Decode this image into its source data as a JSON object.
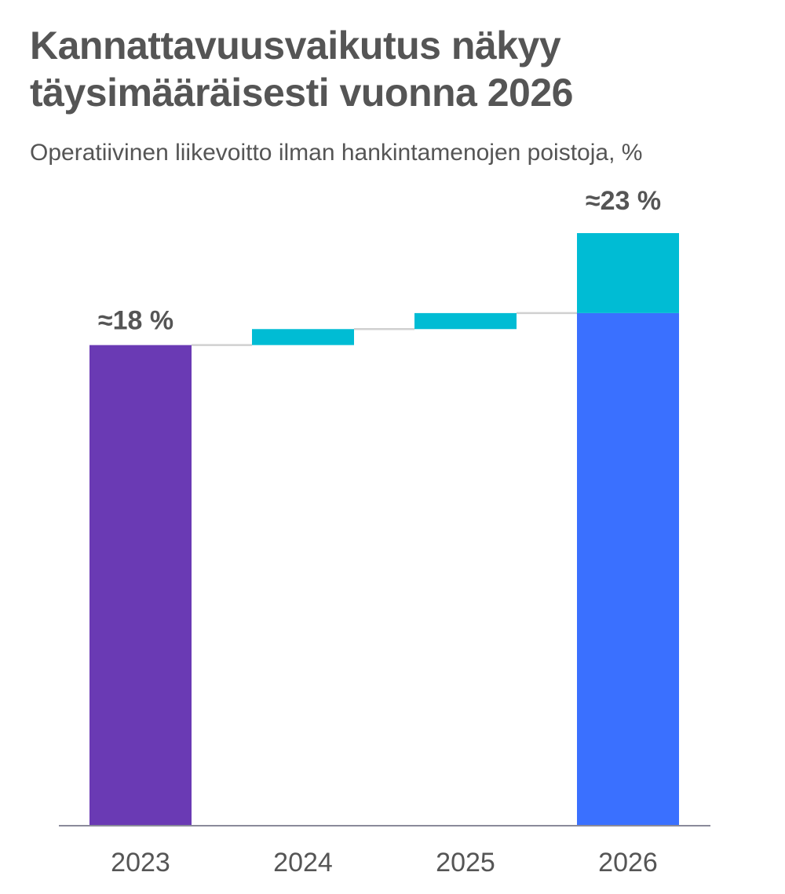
{
  "header": {
    "title_line1": "Kannattavuusvaikutus näkyy",
    "title_line2": "täysimääräisesti vuonna 2026",
    "subtitle": "Operatiivinen liikevoitto ilman hankintamenojen poistoja, %"
  },
  "colors": {
    "start_bar": "#6a3ab4",
    "increment": "#00bcd4",
    "end_bar": "#3a70ff",
    "connector": "#d0d0d0",
    "axis": "#8a8a9a",
    "text": "#555555"
  },
  "chart_data": {
    "type": "bar",
    "subtype": "waterfall",
    "title": "Kannattavuusvaikutus näkyy täysimääräisesti vuonna 2026",
    "subtitle": "Operatiivinen liikevoitto ilman hankintamenojen poistoja, %",
    "categories": [
      "2023",
      "2024",
      "2025",
      "2026"
    ],
    "bars": [
      {
        "category": "2023",
        "kind": "total",
        "base": 0,
        "value": 18.0,
        "label": "≈18 %"
      },
      {
        "category": "2024",
        "kind": "increment",
        "base": 18.0,
        "value": 0.6,
        "label": ""
      },
      {
        "category": "2025",
        "kind": "increment",
        "base": 18.6,
        "value": 0.6,
        "label": ""
      },
      {
        "category": "2026",
        "kind": "stacked",
        "base": 0,
        "value": 19.2,
        "increment": 3.0,
        "label": "≈23 %"
      }
    ],
    "ylim": [
      0,
      22.2
    ],
    "grid": false,
    "legend": "none"
  }
}
